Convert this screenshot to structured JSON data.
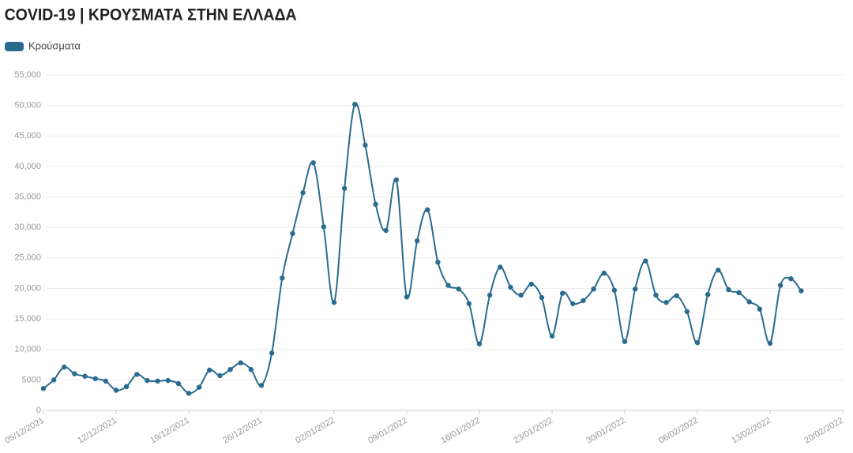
{
  "chart_data": {
    "type": "line",
    "title": "COVID-19 | ΚΡΟΥΣΜΑΤΑ ΣΤΗΝ ΕΛΛΑΔΑ",
    "x": [
      "05/12/2021",
      "06/12/2021",
      "07/12/2021",
      "08/12/2021",
      "09/12/2021",
      "10/12/2021",
      "11/12/2021",
      "12/12/2021",
      "13/12/2021",
      "14/12/2021",
      "15/12/2021",
      "16/12/2021",
      "17/12/2021",
      "18/12/2021",
      "19/12/2021",
      "20/12/2021",
      "21/12/2021",
      "22/12/2021",
      "23/12/2021",
      "24/12/2021",
      "25/12/2021",
      "26/12/2021",
      "27/12/2021",
      "28/12/2021",
      "29/12/2021",
      "30/12/2021",
      "31/12/2021",
      "01/01/2022",
      "02/01/2022",
      "03/01/2022",
      "04/01/2022",
      "05/01/2022",
      "06/01/2022",
      "07/01/2022",
      "08/01/2022",
      "09/01/2022",
      "10/01/2022",
      "11/01/2022",
      "12/01/2022",
      "13/01/2022",
      "14/01/2022",
      "15/01/2022",
      "16/01/2022",
      "17/01/2022",
      "18/01/2022",
      "19/01/2022",
      "20/01/2022",
      "21/01/2022",
      "22/01/2022",
      "23/01/2022",
      "24/01/2022",
      "25/01/2022",
      "26/01/2022",
      "27/01/2022",
      "28/01/2022",
      "29/01/2022",
      "30/01/2022",
      "31/01/2022",
      "01/02/2022",
      "02/02/2022",
      "03/02/2022",
      "04/02/2022",
      "05/02/2022",
      "06/02/2022",
      "07/02/2022",
      "08/02/2022",
      "09/02/2022",
      "10/02/2022",
      "11/02/2022",
      "12/02/2022",
      "13/02/2022",
      "14/02/2022",
      "15/02/2022",
      "16/02/2022"
    ],
    "series": [
      {
        "name": "Κρούσματα",
        "color": "#2a6b90",
        "values": [
          3600,
          5000,
          7100,
          6000,
          5600,
          5200,
          4800,
          3300,
          3900,
          5900,
          4900,
          4800,
          4900,
          4400,
          2800,
          3800,
          6600,
          5700,
          6700,
          7800,
          6700,
          4100,
          9400,
          21700,
          29000,
          35700,
          40600,
          30100,
          17700,
          36400,
          50200,
          43500,
          33800,
          29500,
          37800,
          18600,
          27800,
          32900,
          24300,
          20500,
          19900,
          17500,
          10900,
          18900,
          23500,
          20200,
          18900,
          20700,
          18500,
          12200,
          19200,
          17500,
          18000,
          19900,
          22500,
          19700,
          11300,
          19900,
          24500,
          18900,
          17700,
          18800,
          16200,
          11100,
          19000,
          23000,
          19800,
          19300,
          17800,
          16600,
          11000,
          20500,
          21600,
          19600
        ]
      }
    ],
    "ylim": [
      0,
      55000
    ],
    "yticks": [
      0,
      {
        "value": 5000,
        "label": "5000"
      },
      {
        "value": 10000,
        "label": "10,000"
      },
      {
        "value": 15000,
        "label": "15,000"
      },
      {
        "value": 20000,
        "label": "20,000"
      },
      {
        "value": 25000,
        "label": "25,000"
      },
      {
        "value": 30000,
        "label": "30,000"
      },
      {
        "value": 35000,
        "label": "35,000"
      },
      {
        "value": 40000,
        "label": "40,000"
      },
      {
        "value": 45000,
        "label": "45,000"
      },
      {
        "value": 50000,
        "label": "50,000"
      },
      {
        "value": 55000,
        "label": "55,000"
      }
    ],
    "xticks": [
      "05/12/2021",
      "12/12/2021",
      "19/12/2021",
      "26/12/2021",
      "02/01/2022",
      "09/01/2022",
      "16/01/2022",
      "23/01/2022",
      "30/01/2022",
      "06/02/2022",
      "13/02/2022",
      "20/02/2022"
    ],
    "grid": true,
    "legend": "top-left"
  }
}
